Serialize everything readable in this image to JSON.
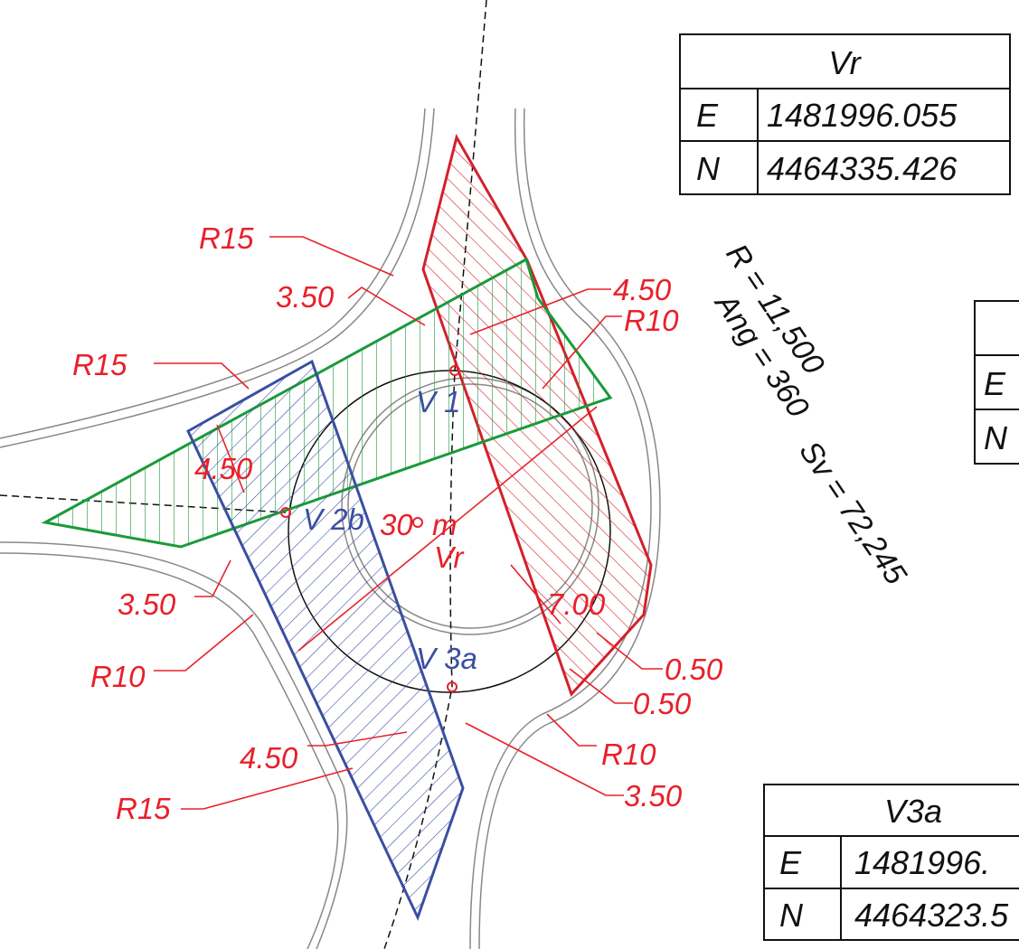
{
  "tables": [
    {
      "title": "Vr",
      "rows": [
        [
          "E",
          "1481996.055"
        ],
        [
          "N",
          "4464335.426"
        ]
      ]
    },
    {
      "rows": [
        [
          "E"
        ],
        [
          "N"
        ]
      ]
    },
    {
      "title": "V3a",
      "rows": [
        [
          "E",
          "1481996."
        ],
        [
          "N",
          "4464323.5"
        ]
      ]
    }
  ],
  "labels": [
    "R15",
    "3.50",
    "4.50",
    "R10",
    "R15",
    "4.50",
    "V 1",
    "V 2b",
    "30",
    "m",
    "Vr",
    "3.50",
    "7.00",
    "R10",
    "V 3a",
    "0.50",
    "0.50",
    "4.50",
    "R10",
    "R15",
    "3.50"
  ],
  "annotations": [
    "R = 11,500",
    "Ang = 360",
    "Sv = 72,245"
  ]
}
